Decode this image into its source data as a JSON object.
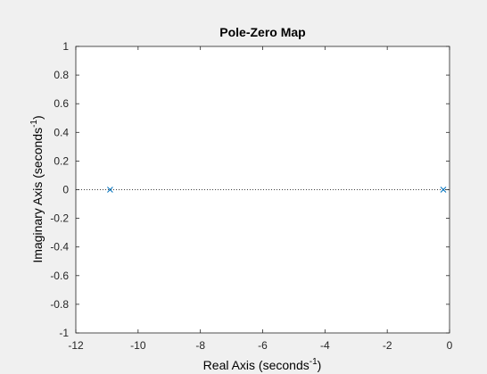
{
  "chart_data": {
    "type": "scatter",
    "title": "Pole-Zero Map",
    "xlabel": {
      "main": "Real Axis (seconds",
      "sup": "-1",
      "close": ")"
    },
    "ylabel": {
      "main": "Imaginary Axis (seconds",
      "sup": "-1",
      "close": ")"
    },
    "xlim": [
      -12,
      0
    ],
    "ylim": [
      -1,
      1
    ],
    "x_ticks": [
      -12,
      -10,
      -8,
      -6,
      -4,
      -2,
      0
    ],
    "x_tick_labels": [
      "-12",
      "-10",
      "-8",
      "-6",
      "-4",
      "-2",
      "0"
    ],
    "y_ticks": [
      -1,
      -0.8,
      -0.6,
      -0.4,
      -0.2,
      0,
      0.2,
      0.4,
      0.6,
      0.8,
      1
    ],
    "y_tick_labels": [
      "-1",
      "-0.8",
      "-0.6",
      "-0.4",
      "-0.2",
      "0",
      "0.2",
      "0.4",
      "0.6",
      "0.8",
      "1"
    ],
    "grid": false,
    "series": [
      {
        "marker": "x",
        "color": "#0072BD",
        "points": [
          {
            "x": -10.9,
            "y": 0
          },
          {
            "x": -0.2,
            "y": 0
          }
        ]
      }
    ],
    "reference_line": {
      "y": 0,
      "style": "dotted"
    }
  }
}
